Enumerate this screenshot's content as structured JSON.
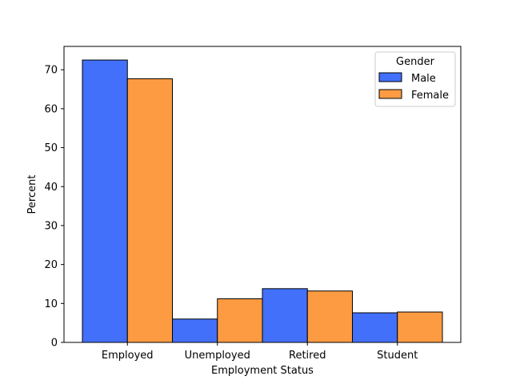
{
  "chart_data": {
    "type": "bar",
    "title": "",
    "xlabel": "Employment Status",
    "ylabel": "Percent",
    "categories": [
      "Employed",
      "Unemployed",
      "Retired",
      "Student"
    ],
    "series": [
      {
        "name": "Male",
        "color": "#4270fa",
        "values": [
          72.5,
          6.0,
          13.8,
          7.6
        ]
      },
      {
        "name": "Female",
        "color": "#fc9b42",
        "values": [
          67.7,
          11.2,
          13.2,
          7.8
        ]
      }
    ],
    "ylim": [
      0,
      76
    ],
    "yticks": [
      0,
      10,
      20,
      30,
      40,
      50,
      60,
      70
    ],
    "grid": false,
    "legend": {
      "title": "Gender",
      "placement": "top-right"
    }
  }
}
